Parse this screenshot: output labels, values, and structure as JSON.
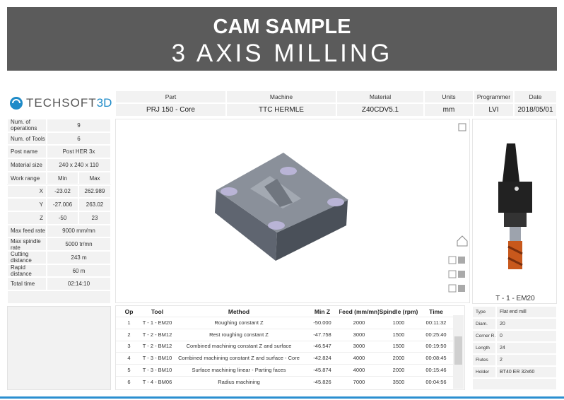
{
  "header": {
    "title": "CAM SAMPLE",
    "subtitle": "3 AXIS MILLING"
  },
  "logo": {
    "text": "TECHSOFT",
    "accent": "3D"
  },
  "info": {
    "headers": [
      "Part",
      "Machine",
      "Material",
      "Units",
      "Programmer",
      "Date"
    ],
    "values": [
      "PRJ 150 - Core",
      "TTC HERMLE",
      "Z40CDV5.1",
      "mm",
      "LVI",
      "2018/05/01"
    ]
  },
  "summary": {
    "rows": [
      [
        "Num. of operations",
        "9"
      ],
      [
        "Num. of Tools",
        "6"
      ],
      [
        "Post name",
        "Post HER 3x"
      ],
      [
        "Material size",
        "240 x 240 x 110"
      ],
      [
        "Work range",
        "Min",
        "Max"
      ],
      [
        "X",
        "-23.02",
        "262.989"
      ],
      [
        "Y",
        "-27.006",
        "263.02"
      ],
      [
        "Z",
        "-50",
        "23"
      ],
      [
        "Max feed rate",
        "9000 mm/mn"
      ],
      [
        "Max spindle rate",
        "5000 tr/mn"
      ],
      [
        "Cutting distance",
        "243 m"
      ],
      [
        "Rapid distance",
        "60 m"
      ],
      [
        "Total time",
        "02:14:10"
      ]
    ]
  },
  "tool_caption": "T - 1 - EM20",
  "operations": {
    "columns": [
      "Op",
      "Tool",
      "Method",
      "Min Z",
      "Feed (mm/mn)",
      "Spindle (rpm)",
      "Time"
    ],
    "rows": [
      [
        "1",
        "T - 1 - EM20",
        "Roughing constant Z",
        "-50.000",
        "2000",
        "1000",
        "00:11:32"
      ],
      [
        "2",
        "T - 2 - BM12",
        "Rest roughing constant Z",
        "-47.758",
        "3000",
        "1500",
        "00:25:40"
      ],
      [
        "3",
        "T - 2 - BM12",
        "Combined machining constant Z and surface",
        "-46.547",
        "3000",
        "1500",
        "00:19:50"
      ],
      [
        "4",
        "T - 3 - BM10",
        "Combined machining constant Z and surface - Core",
        "-42.824",
        "4000",
        "2000",
        "00:08:45"
      ],
      [
        "5",
        "T - 3 - BM10",
        "Surface machining linear - Parting faces",
        "-45.874",
        "4000",
        "2000",
        "00:15:46"
      ],
      [
        "6",
        "T - 4 - BM06",
        "Radius machining",
        "-45.826",
        "7000",
        "3500",
        "00:04:56"
      ]
    ]
  },
  "tool_properties": {
    "rows": [
      [
        "Type",
        "Flat end mill"
      ],
      [
        "Diam.",
        "20"
      ],
      [
        "Corner R.",
        "0"
      ],
      [
        "Length",
        "24"
      ],
      [
        "Flutes",
        "2"
      ],
      [
        "Holder",
        "BT40 ER 32x60"
      ]
    ]
  }
}
